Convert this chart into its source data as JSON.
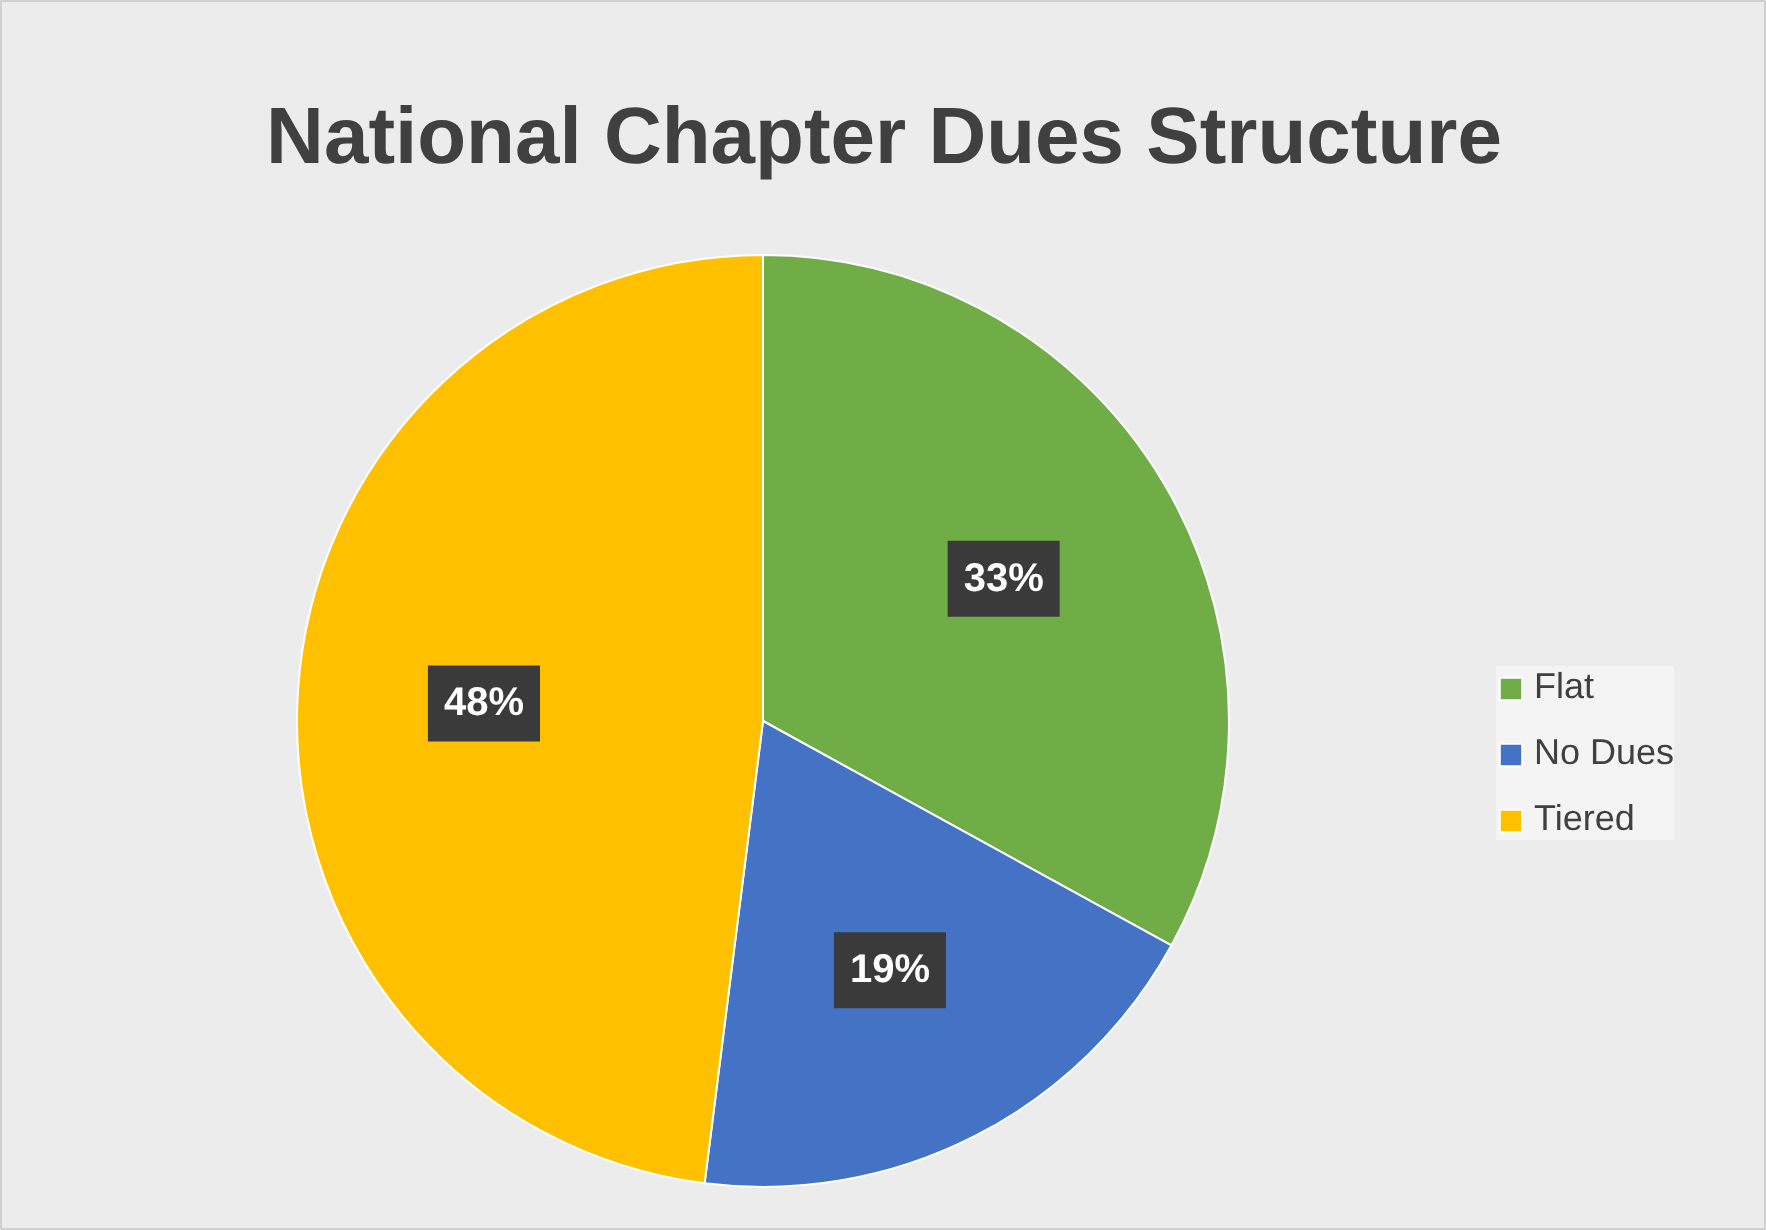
{
  "chart_data": {
    "type": "pie",
    "title": "National Chapter Dues Structure",
    "categories": [
      "Flat",
      "No Dues",
      "Tiered"
    ],
    "values": [
      33,
      19,
      48
    ],
    "colors": [
      "#70ad47",
      "#4472c4",
      "#ffc000"
    ],
    "value_labels": [
      "33%",
      "19%",
      "48%"
    ],
    "legend": "right"
  }
}
